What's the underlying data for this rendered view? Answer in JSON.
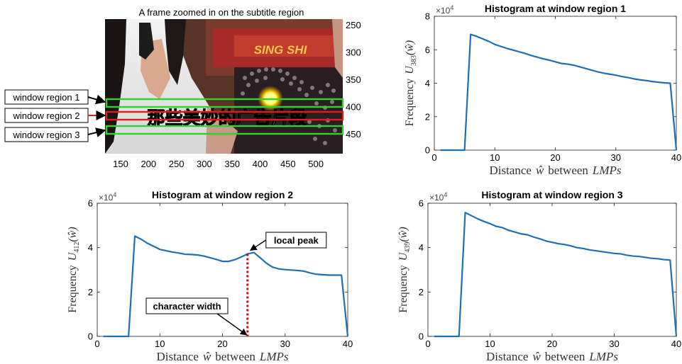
{
  "colors": {
    "series": "#1f6fb4",
    "peak_line": "#e00000",
    "window_region_1": "#2fd22f",
    "window_region_2": "#e21a1a",
    "window_region_3": "#2fd22f",
    "axis": "#222222",
    "annotation_arrow": "#000000"
  },
  "subtitle_frame": {
    "title": "A frame zoomed in on the subtitle region",
    "x_ticks": [
      "150",
      "200",
      "250",
      "300",
      "350",
      "400",
      "450",
      "500"
    ],
    "y_ticks": [
      "250",
      "300",
      "350",
      "400",
      "450"
    ],
    "subtitle_text": "那些美妙的广告片段",
    "banner_text": "SING SHI",
    "window_labels": [
      "window region 1",
      "window region 2",
      "window region 3"
    ]
  },
  "chart_data": [
    {
      "type": "line",
      "title": "Histogram at window region 1",
      "xlabel_text": "Distance",
      "xlabel_symbol": "ŵ",
      "xlabel_mid": "between",
      "xlabel_italic": "LMPs",
      "ylabel_text": "Frequency",
      "ylabel_symbol": "U",
      "ylabel_subscript": "383",
      "ylabel_arg": "(ŵ)",
      "exponent_label": "×10",
      "exponent_power": "4",
      "xlim": [
        0,
        40
      ],
      "ylim": [
        0,
        8
      ],
      "x_ticks": [
        "0",
        "10",
        "20",
        "30",
        "40"
      ],
      "y_ticks": [
        "0",
        "2",
        "4",
        "6",
        "8"
      ],
      "grid": false,
      "x": [
        1,
        2,
        3,
        4,
        5,
        6,
        7,
        8,
        9,
        10,
        11,
        12,
        13,
        14,
        15,
        16,
        17,
        18,
        19,
        20,
        21,
        22,
        23,
        24,
        25,
        26,
        27,
        28,
        29,
        30,
        31,
        32,
        33,
        34,
        35,
        36,
        37,
        38,
        39,
        40
      ],
      "y": [
        0,
        0,
        0,
        0,
        0,
        6.92,
        6.8,
        6.65,
        6.5,
        6.32,
        6.2,
        6.08,
        5.98,
        5.88,
        5.78,
        5.66,
        5.56,
        5.46,
        5.38,
        5.28,
        5.18,
        5.14,
        5.08,
        4.98,
        4.88,
        4.78,
        4.68,
        4.6,
        4.54,
        4.48,
        4.4,
        4.34,
        4.26,
        4.2,
        4.16,
        4.1,
        4.06,
        4.02,
        4.0,
        0
      ]
    },
    {
      "type": "line",
      "title": "Histogram at window region 2",
      "xlabel_text": "Distance",
      "xlabel_symbol": "ŵ",
      "xlabel_mid": "between",
      "xlabel_italic": "LMPs",
      "ylabel_text": "Frequency",
      "ylabel_symbol": "U",
      "ylabel_subscript": "412",
      "ylabel_arg": "(ŵ)",
      "exponent_label": "×10",
      "exponent_power": "4",
      "xlim": [
        0,
        40
      ],
      "ylim": [
        0,
        6
      ],
      "x_ticks": [
        "0",
        "10",
        "20",
        "30",
        "40"
      ],
      "y_ticks": [
        "0",
        "2",
        "4",
        "6"
      ],
      "grid": false,
      "x": [
        1,
        2,
        3,
        4,
        5,
        6,
        7,
        8,
        9,
        10,
        11,
        12,
        13,
        14,
        15,
        16,
        17,
        18,
        19,
        20,
        21,
        22,
        23,
        24,
        25,
        26,
        27,
        28,
        29,
        30,
        31,
        32,
        33,
        34,
        35,
        36,
        37,
        38,
        39,
        40
      ],
      "y": [
        0,
        0,
        0,
        0,
        0,
        4.52,
        4.38,
        4.2,
        4.06,
        3.92,
        3.86,
        3.8,
        3.76,
        3.7,
        3.69,
        3.67,
        3.62,
        3.55,
        3.47,
        3.38,
        3.38,
        3.46,
        3.58,
        3.72,
        3.78,
        3.55,
        3.3,
        3.12,
        3.04,
        3.01,
        2.99,
        2.97,
        2.94,
        2.86,
        2.8,
        2.78,
        2.76,
        2.76,
        2.76,
        0
      ],
      "annotations": [
        {
          "label": "local peak",
          "x": 24,
          "y": 3.72
        },
        {
          "label": "character width",
          "x": 24,
          "y": 0
        }
      ]
    },
    {
      "type": "line",
      "title": "Histogram at window region 3",
      "xlabel_text": "Distance",
      "xlabel_symbol": "ŵ",
      "xlabel_mid": "between",
      "xlabel_italic": "LMPs",
      "ylabel_text": "Frequency",
      "ylabel_symbol": "U",
      "ylabel_subscript": "439",
      "ylabel_arg": "(ŵ)",
      "exponent_label": "×10",
      "exponent_power": "4",
      "xlim": [
        0,
        40
      ],
      "ylim": [
        0,
        6
      ],
      "x_ticks": [
        "0",
        "10",
        "20",
        "30",
        "40"
      ],
      "y_ticks": [
        "0",
        "2",
        "4",
        "6"
      ],
      "grid": false,
      "x": [
        1,
        2,
        3,
        4,
        5,
        6,
        7,
        8,
        9,
        10,
        11,
        12,
        13,
        14,
        15,
        16,
        17,
        18,
        19,
        20,
        21,
        22,
        23,
        24,
        25,
        26,
        27,
        28,
        29,
        30,
        31,
        32,
        33,
        34,
        35,
        36,
        37,
        38,
        39,
        40
      ],
      "y": [
        0,
        0,
        0,
        0,
        0,
        5.58,
        5.44,
        5.3,
        5.18,
        5.08,
        4.96,
        4.9,
        4.78,
        4.7,
        4.62,
        4.58,
        4.48,
        4.4,
        4.3,
        4.24,
        4.18,
        4.14,
        4.08,
        4.0,
        3.96,
        3.9,
        3.86,
        3.82,
        3.78,
        3.74,
        3.72,
        3.66,
        3.62,
        3.6,
        3.56,
        3.52,
        3.5,
        3.46,
        3.44,
        0
      ]
    }
  ]
}
